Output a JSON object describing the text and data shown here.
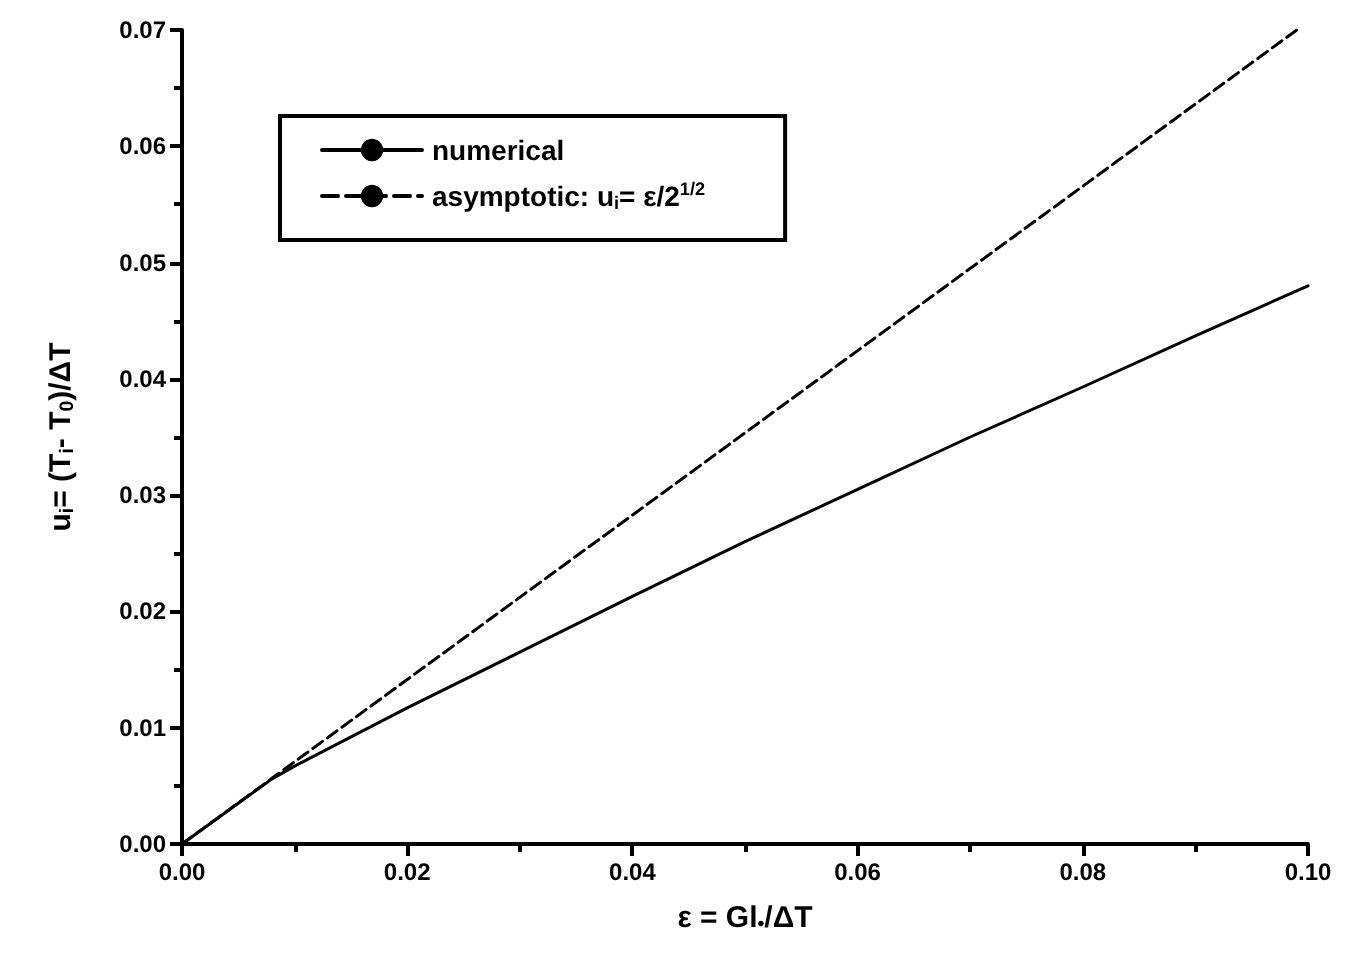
{
  "chart_data": {
    "type": "line",
    "xlabel": "ε = Gl$_{•}$/ΔT",
    "ylabel": "u$_{i}$= (T$_{i}$- T$_{0}$)/ΔT",
    "xlim": [
      0,
      0.1
    ],
    "xticks": [
      {
        "value": 0,
        "label": "0.00"
      },
      {
        "value": 0.02,
        "label": "0.02"
      },
      {
        "value": 0.04,
        "label": "0.04"
      },
      {
        "value": 0.06,
        "label": "0.06"
      },
      {
        "value": 0.08,
        "label": "0.08"
      },
      {
        "value": 0.1,
        "label": "0.10"
      }
    ],
    "ylim": [
      0,
      0.07
    ],
    "yticks": [
      {
        "value": 0,
        "label": "0.00"
      },
      {
        "value": 0.01,
        "label": "0.01"
      },
      {
        "value": 0.02,
        "label": "0.02"
      },
      {
        "value": 0.03,
        "label": "0.03"
      },
      {
        "value": 0.04,
        "label": "0.04"
      },
      {
        "value": 0.05,
        "label": "0.05"
      },
      {
        "value": 0.06,
        "label": "0.06"
      },
      {
        "value": 0.07,
        "label": "0.07"
      }
    ],
    "grid": false,
    "legend": "top left",
    "marker": "none",
    "series": [
      {
        "name": "numerical",
        "color": "#000000",
        "line_style": "solid",
        "x": [
          0,
          0.002,
          0.005,
          0.008,
          0.01,
          0.02,
          0.03,
          0.04,
          0.05,
          0.06,
          0.07,
          0.08,
          0.09,
          0.1
        ],
        "values": [
          0,
          0.0014,
          0.0035,
          0.0056,
          0.0067,
          0.0117,
          0.0165,
          0.0213,
          0.026,
          0.0305,
          0.035,
          0.0393,
          0.0437,
          0.048
        ]
      },
      {
        "name": "asymptotic: u$_{i}$= ε/2$^{1/2}$",
        "color": "#000000",
        "line_style": "dashed",
        "x": [
          0,
          0.099
        ],
        "values": [
          0,
          0.07
        ]
      }
    ]
  }
}
